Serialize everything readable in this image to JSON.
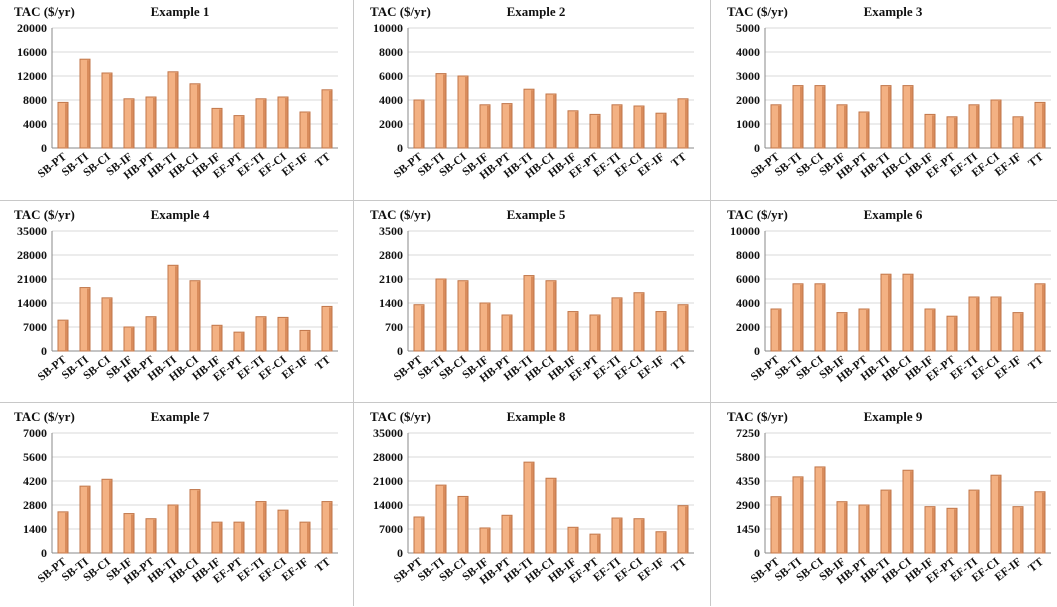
{
  "categories": [
    "SB-PT",
    "SB-TI",
    "SB-CI",
    "SB-IF",
    "HB-PT",
    "HB-TI",
    "HB-CI",
    "HB-IF",
    "EF-PT",
    "EF-TI",
    "EF-CI",
    "EF-IF",
    "TT"
  ],
  "ylabel": "TAC ($/yr)",
  "colors": {
    "bar_fill": "#F3B183",
    "bar_edge": "#C0764A",
    "bar_shade": "#D98C5C",
    "gridline": "#D9D9D9",
    "axis": "#888888",
    "panel_divider": "#C8C8C8"
  },
  "chart_data": [
    {
      "type": "bar",
      "title": "Example 1",
      "ylabel": "TAC ($/yr)",
      "ylim": [
        0,
        20000
      ],
      "yticks": [
        "0",
        "4000",
        "8000",
        "12000",
        "16000",
        "20000"
      ],
      "categories": [
        "SB-PT",
        "SB-TI",
        "SB-CI",
        "SB-IF",
        "HB-PT",
        "HB-TI",
        "HB-CI",
        "HB-IF",
        "EF-PT",
        "EF-TI",
        "EF-CI",
        "EF-IF",
        "TT"
      ],
      "values": [
        7600,
        14800,
        12500,
        8200,
        8500,
        12700,
        10700,
        6600,
        5400,
        8200,
        8500,
        6000,
        9700
      ],
      "grid": true
    },
    {
      "type": "bar",
      "title": "Example 2",
      "ylabel": "TAC ($/yr)",
      "ylim": [
        0,
        10000
      ],
      "yticks": [
        "0",
        "2000",
        "4000",
        "6000",
        "8000",
        "10000"
      ],
      "categories": [
        "SB-PT",
        "SB-TI",
        "SB-CI",
        "SB-IF",
        "HB-PT",
        "HB-TI",
        "HB-CI",
        "HB-IF",
        "EF-PT",
        "EF-TI",
        "EF-CI",
        "EF-IF",
        "TT"
      ],
      "values": [
        4000,
        6200,
        6000,
        3600,
        3700,
        4900,
        4500,
        3100,
        2800,
        3600,
        3500,
        2900,
        4100
      ],
      "grid": true
    },
    {
      "type": "bar",
      "title": "Example 3",
      "ylabel": "TAC ($/yr)",
      "ylim": [
        0,
        5000
      ],
      "yticks": [
        "0",
        "1000",
        "2000",
        "3000",
        "4000",
        "5000"
      ],
      "categories": [
        "SB-PT",
        "SB-TI",
        "SB-CI",
        "SB-IF",
        "HB-PT",
        "HB-TI",
        "HB-CI",
        "HB-IF",
        "EF-PT",
        "EF-TI",
        "EF-CI",
        "EF-IF",
        "TT"
      ],
      "values": [
        1800,
        2600,
        2600,
        1800,
        1500,
        2600,
        2600,
        1400,
        1300,
        1800,
        2000,
        1300,
        1900
      ],
      "grid": true
    },
    {
      "type": "bar",
      "title": "Example 4",
      "ylabel": "TAC ($/yr)",
      "ylim": [
        0,
        35000
      ],
      "yticks": [
        "0",
        "7000",
        "14000",
        "21000",
        "28000",
        "35000"
      ],
      "categories": [
        "SB-PT",
        "SB-TI",
        "SB-CI",
        "SB-IF",
        "HB-PT",
        "HB-TI",
        "HB-CI",
        "HB-IF",
        "EF-PT",
        "EF-TI",
        "EF-CI",
        "EF-IF",
        "TT"
      ],
      "values": [
        9000,
        18500,
        15500,
        7000,
        10000,
        25000,
        20500,
        7500,
        5500,
        10000,
        9800,
        6000,
        13000
      ],
      "grid": true
    },
    {
      "type": "bar",
      "title": "Example 5",
      "ylabel": "TAC ($/yr)",
      "ylim": [
        0,
        3500
      ],
      "yticks": [
        "0",
        "700",
        "1400",
        "2100",
        "2800",
        "3500"
      ],
      "categories": [
        "SB-PT",
        "SB-TI",
        "SB-CI",
        "SB-IF",
        "HB-PT",
        "HB-TI",
        "HB-CI",
        "HB-IF",
        "EF-PT",
        "EF-TI",
        "EF-CI",
        "EF-IF",
        "TT"
      ],
      "values": [
        1350,
        2100,
        2050,
        1400,
        1050,
        2200,
        2050,
        1150,
        1050,
        1550,
        1700,
        1150,
        1350
      ],
      "grid": true
    },
    {
      "type": "bar",
      "title": "Example 6",
      "ylabel": "TAC ($/yr)",
      "ylim": [
        0,
        10000
      ],
      "yticks": [
        "0",
        "2000",
        "4000",
        "6000",
        "8000",
        "10000"
      ],
      "categories": [
        "SB-PT",
        "SB-TI",
        "SB-CI",
        "SB-IF",
        "HB-PT",
        "HB-TI",
        "HB-CI",
        "HB-IF",
        "EF-PT",
        "EF-TI",
        "EF-CI",
        "EF-IF",
        "TT"
      ],
      "values": [
        3500,
        5600,
        5600,
        3200,
        3500,
        6400,
        6400,
        3500,
        2900,
        4500,
        4500,
        3200,
        5600
      ],
      "grid": true
    },
    {
      "type": "bar",
      "title": "Example 7",
      "ylabel": "TAC ($/yr)",
      "ylim": [
        0,
        7000
      ],
      "yticks": [
        "0",
        "1400",
        "2800",
        "4200",
        "5600",
        "7000"
      ],
      "categories": [
        "SB-PT",
        "SB-TI",
        "SB-CI",
        "SB-IF",
        "HB-PT",
        "HB-TI",
        "HB-CI",
        "HB-IF",
        "EF-PT",
        "EF-TI",
        "EF-CI",
        "EF-IF",
        "TT"
      ],
      "values": [
        2400,
        3900,
        4300,
        2300,
        2000,
        2800,
        3700,
        1800,
        1800,
        3000,
        2500,
        1800,
        3000
      ],
      "grid": true
    },
    {
      "type": "bar",
      "title": "Example 8",
      "ylabel": "TAC ($/yr)",
      "ylim": [
        0,
        35000
      ],
      "yticks": [
        "0",
        "7000",
        "14000",
        "21000",
        "28000",
        "35000"
      ],
      "categories": [
        "SB-PT",
        "SB-TI",
        "SB-CI",
        "SB-IF",
        "HB-PT",
        "HB-TI",
        "HB-CI",
        "HB-IF",
        "EF-PT",
        "EF-TI",
        "EF-CI",
        "EF-IF",
        "TT"
      ],
      "values": [
        10500,
        19800,
        16500,
        7300,
        11000,
        26500,
        21800,
        7500,
        5500,
        10200,
        10000,
        6200,
        13800
      ],
      "grid": true
    },
    {
      "type": "bar",
      "title": "Example 9",
      "ylabel": "TAC ($/yr)",
      "ylim": [
        0,
        7250
      ],
      "yticks": [
        "0",
        "1450",
        "2900",
        "4350",
        "5800",
        "7250"
      ],
      "categories": [
        "SB-PT",
        "SB-TI",
        "SB-CI",
        "SB-IF",
        "HB-PT",
        "HB-TI",
        "HB-CI",
        "HB-IF",
        "EF-PT",
        "EF-TI",
        "EF-CI",
        "EF-IF",
        "TT"
      ],
      "values": [
        3400,
        4600,
        5200,
        3100,
        2900,
        3800,
        5000,
        2800,
        2700,
        3800,
        4700,
        2800,
        3700
      ],
      "grid": true
    }
  ]
}
